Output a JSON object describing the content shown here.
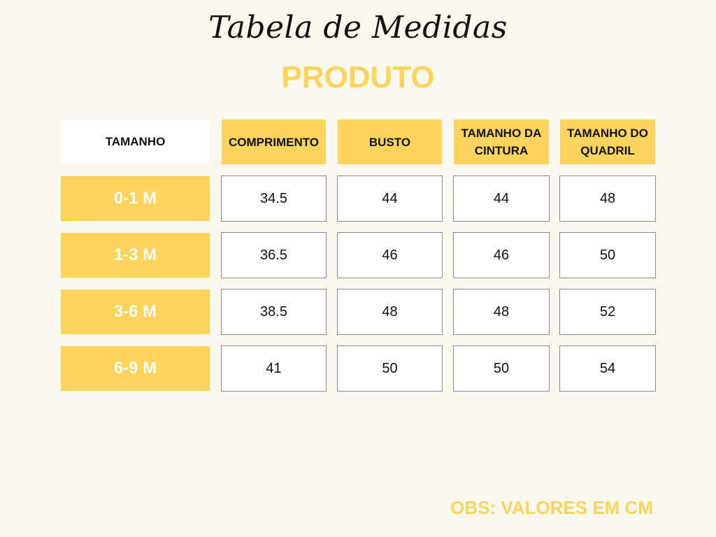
{
  "title": "Tabela de Medidas",
  "subtitle": "PRODUTO",
  "table": {
    "headers": [
      "TAMANHO",
      "COMPRIMENTO",
      "BUSTO",
      "TAMANHO DA CINTURA",
      "TAMANHO DO QUADRIL"
    ],
    "rows": [
      {
        "size": "0-1 M",
        "values": [
          "34.5",
          "44",
          "44",
          "48"
        ]
      },
      {
        "size": "1-3 M",
        "values": [
          "36.5",
          "46",
          "46",
          "50"
        ]
      },
      {
        "size": "3-6 M",
        "values": [
          "38.5",
          "48",
          "48",
          "52"
        ]
      },
      {
        "size": "6-9 M",
        "values": [
          "41",
          "50",
          "50",
          "54"
        ]
      }
    ]
  },
  "note": "OBS: VALORES EM CM",
  "colors": {
    "accent": "#ffd45c",
    "background": "#faf8ef"
  }
}
